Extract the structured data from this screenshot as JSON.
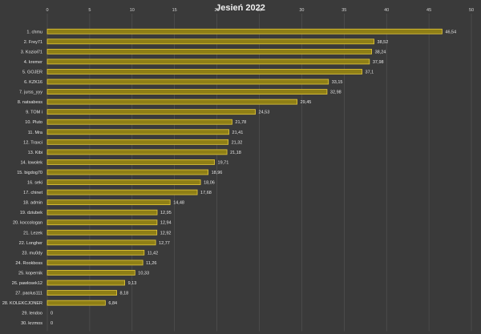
{
  "chart_data": {
    "type": "bar",
    "orientation": "horizontal",
    "title": "Jesień 2022",
    "xlabel": "",
    "ylabel": "",
    "xlim": [
      0,
      50
    ],
    "x_ticks": [
      "0",
      "5",
      "10",
      "15",
      "20",
      "25",
      "30",
      "35",
      "40",
      "45",
      "50"
    ],
    "grid": true,
    "legend": "none",
    "colors": {
      "bar_fill": "#8f7f16",
      "bar_edge": "#e5c93a",
      "background": "#3a3a3a",
      "grid": "#555555"
    },
    "categories": [
      "1.  chmu",
      "2.  Frey71",
      "3.  Kozioł71",
      "4.  kremer",
      "5.  GOJER",
      "6.  KZK16",
      "7.  jurss_yyy",
      "8.  natsabess",
      "9.  TOM i",
      "10.  Pluto",
      "11.  Mra",
      "12.  Traxci",
      "13.  Kibi",
      "14.  lowolek",
      "15.  bigdog70",
      "16.  seki",
      "17.  chinet",
      "18.  admin",
      "19.  dziubek",
      "20.  koccologan",
      "21.  Lezek",
      "22.  Longher",
      "23.  mu0dy",
      "24.  Rookboss",
      "25.  kopernik",
      "26.  pawlosek12",
      "27.  paolus111",
      "28.  KOLEKCJONER",
      "29.  lendoo",
      "30.  krzmos"
    ],
    "values": [
      46.54,
      38.52,
      38.24,
      37.98,
      37.1,
      33.15,
      32.98,
      29.45,
      24.53,
      21.78,
      21.41,
      21.32,
      21.18,
      19.71,
      18.96,
      18.06,
      17.68,
      14.48,
      12.95,
      12.94,
      12.92,
      12.77,
      11.42,
      11.26,
      10.33,
      9.13,
      8.18,
      6.84,
      0,
      0
    ],
    "value_labels": [
      "46,54",
      "38,52",
      "38,24",
      "37,98",
      "37,1",
      "33,15",
      "32,98",
      "29,45",
      "24,53",
      "21,78",
      "21,41",
      "21,32",
      "21,18",
      "19,71",
      "18,96",
      "18,06",
      "17,68",
      "14,48",
      "12,95",
      "12,94",
      "12,92",
      "12,77",
      "11,42",
      "11,26",
      "10,33",
      "9,13",
      "8,18",
      "6,84",
      "0",
      "0"
    ]
  }
}
